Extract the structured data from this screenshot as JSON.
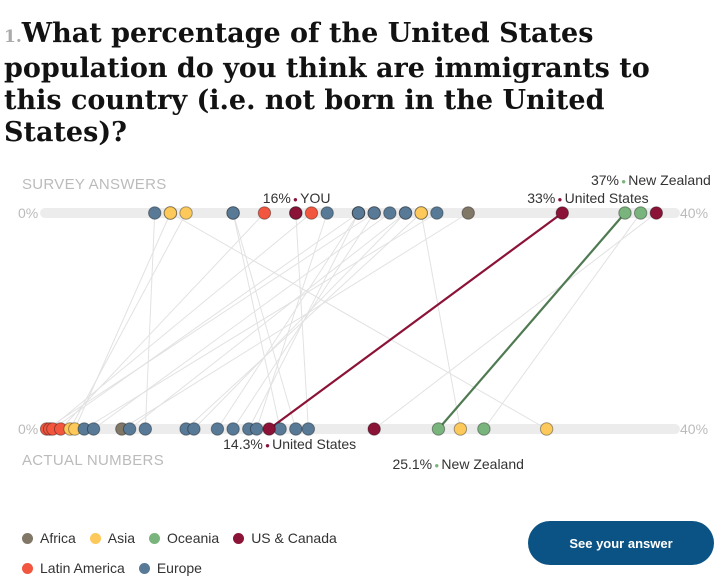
{
  "question": {
    "number": "1.",
    "text": "What percentage of the United States population do you think are immigrants to this country (i.e. not born in the United States)?"
  },
  "chart_data": {
    "type": "slopegraph",
    "row_labels": {
      "top": "SURVEY ANSWERS",
      "bottom": "ACTUAL NUMBERS"
    },
    "axis": {
      "min": 0,
      "max": 40,
      "min_label": "0%",
      "max_label": "40%"
    },
    "regions": [
      {
        "key": "africa",
        "name": "Africa",
        "color": "#817767"
      },
      {
        "key": "asia",
        "name": "Asia",
        "color": "#fcc95a"
      },
      {
        "key": "oceania",
        "name": "Oceania",
        "color": "#79b47c"
      },
      {
        "key": "us_canada",
        "name": "US & Canada",
        "color": "#8c1338"
      },
      {
        "key": "latam",
        "name": "Latin America",
        "color": "#f2563f"
      },
      {
        "key": "europe",
        "name": "Europe",
        "color": "#587a96"
      }
    ],
    "countries": [
      {
        "region": "latam",
        "guess": 21,
        "actual": 0.1
      },
      {
        "region": "latam",
        "guess": 17,
        "actual": 0.3
      },
      {
        "region": "latam",
        "guess": 20,
        "actual": 0.5
      },
      {
        "region": "latam",
        "guess": 14,
        "actual": 1
      },
      {
        "region": "asia",
        "guess": 9,
        "actual": 1.6
      },
      {
        "region": "asia",
        "guess": 8,
        "actual": 1.9
      },
      {
        "region": "europe",
        "guess": 25,
        "actual": 2.5
      },
      {
        "region": "europe",
        "guess": 22,
        "actual": 3.1
      },
      {
        "region": "africa",
        "guess": 27,
        "actual": 4.9
      },
      {
        "region": "europe",
        "guess": 23,
        "actual": 5.4
      },
      {
        "region": "europe",
        "guess": 7,
        "actual": 6.4
      },
      {
        "region": "europe",
        "guess": 24,
        "actual": 9
      },
      {
        "region": "europe",
        "guess": 23,
        "actual": 9.5
      },
      {
        "region": "europe",
        "guess": 20,
        "actual": 11
      },
      {
        "region": "europe",
        "guess": 21,
        "actual": 12
      },
      {
        "region": "europe",
        "guess": 20,
        "actual": 13
      },
      {
        "region": "europe",
        "guess": 18,
        "actual": 13.5
      },
      {
        "region": "europe",
        "guess": 12,
        "actual": 15
      },
      {
        "region": "europe",
        "guess": 12,
        "actual": 16
      },
      {
        "region": "us_canada",
        "guess": 33,
        "actual": 14.3,
        "label": "United States",
        "guess_label": "33%",
        "actual_label": "14.3%",
        "highlight": true
      },
      {
        "region": "europe",
        "guess": 16,
        "actual": 16.8
      },
      {
        "region": "us_canada",
        "guess": 39,
        "actual": 21
      },
      {
        "region": "oceania",
        "guess": 37,
        "actual": 25.1,
        "label": "New Zealand",
        "guess_label": "37%",
        "actual_label": "25.1%",
        "highlight": true
      },
      {
        "region": "asia",
        "guess": 24,
        "actual": 26.5
      },
      {
        "region": "oceania",
        "guess": 38,
        "actual": 28
      },
      {
        "region": "asia",
        "guess": 8,
        "actual": 32
      }
    ],
    "you": {
      "guess": 16,
      "label": "YOU",
      "guess_label": "16%"
    }
  },
  "legend": {
    "africa": "Africa",
    "asia": "Asia",
    "oceania": "Oceania",
    "us_canada": "US & Canada",
    "latam": "Latin America",
    "europe": "Europe"
  },
  "cta": {
    "label": "See your answer"
  }
}
